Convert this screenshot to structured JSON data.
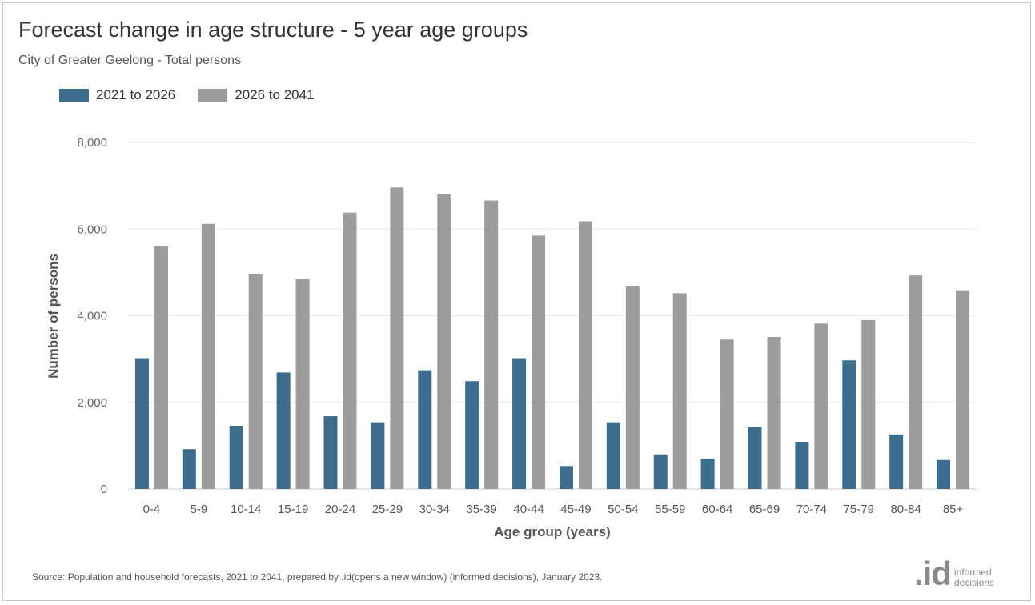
{
  "header": {
    "title": "Forecast change in age structure - 5 year age groups",
    "subtitle": "City of Greater Geelong - Total persons"
  },
  "legend": {
    "items": [
      {
        "label": "2021 to 2026",
        "color": "#3d6d8f"
      },
      {
        "label": "2026 to 2041",
        "color": "#9c9c9c"
      }
    ]
  },
  "chart_data": {
    "type": "bar",
    "title": "Forecast change in age structure - 5 year age groups",
    "subtitle": "City of Greater Geelong - Total persons",
    "xlabel": "Age group (years)",
    "ylabel": "Number of persons",
    "ylim": [
      0,
      8000
    ],
    "yticks": [
      0,
      2000,
      4000,
      6000,
      8000
    ],
    "ytick_labels": [
      "0",
      "2,000",
      "4,000",
      "6,000",
      "8,000"
    ],
    "grid": true,
    "legend_position": "top-left",
    "categories": [
      "0-4",
      "5-9",
      "10-14",
      "15-19",
      "20-24",
      "25-29",
      "30-34",
      "35-39",
      "40-44",
      "45-49",
      "50-54",
      "55-59",
      "60-64",
      "65-69",
      "70-74",
      "75-79",
      "80-84",
      "85+"
    ],
    "series": [
      {
        "name": "2021 to 2026",
        "color": "#3d6d8f",
        "values": [
          3020,
          920,
          1460,
          2690,
          1680,
          1540,
          2740,
          2490,
          3020,
          530,
          1540,
          800,
          700,
          1430,
          1090,
          2970,
          1260,
          670
        ]
      },
      {
        "name": "2026 to 2041",
        "color": "#9c9c9c",
        "values": [
          5600,
          6120,
          4960,
          4840,
          6380,
          6960,
          6800,
          6660,
          5850,
          6180,
          4680,
          4520,
          3450,
          3510,
          3820,
          3900,
          4930,
          4570
        ]
      }
    ]
  },
  "footer": {
    "source": "Source: Population and household forecasts, 2021 to 2041, prepared by .id(opens a new window) (informed decisions), January 2023.",
    "logo_mark": ".id",
    "logo_line1": "informed",
    "logo_line2": "decisions"
  }
}
